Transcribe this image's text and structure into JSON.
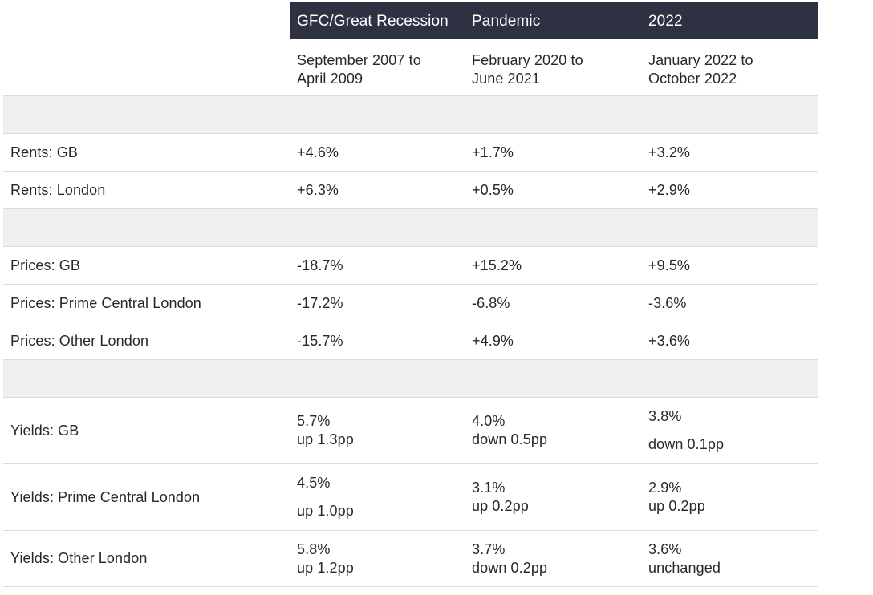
{
  "header": {
    "columns": [
      "GFC/Great Recession",
      "Pandemic",
      "2022"
    ]
  },
  "periods": [
    [
      "September 2007 to",
      "April 2009"
    ],
    [
      "February 2020 to",
      "June 2021"
    ],
    [
      "January 2022 to",
      "October 2022"
    ]
  ],
  "rents": {
    "gb": {
      "label": "Rents: GB",
      "values": [
        "+4.6%",
        "+1.7%",
        "+3.2%"
      ]
    },
    "london": {
      "label": "Rents: London",
      "values": [
        "+6.3%",
        "+0.5%",
        "+2.9%"
      ]
    }
  },
  "prices": {
    "gb": {
      "label": "Prices: GB",
      "values": [
        "-18.7%",
        "+15.2%",
        "+9.5%"
      ]
    },
    "pcl": {
      "label": "Prices: Prime Central London",
      "values": [
        "-17.2%",
        "-6.8%",
        "-3.6%"
      ]
    },
    "other": {
      "label": "Prices: Other London",
      "values": [
        "-15.7%",
        "+4.9%",
        "+3.6%"
      ]
    }
  },
  "yields": {
    "gb": {
      "label": "Yields: GB",
      "values": [
        [
          "5.7%",
          "up 1.3pp"
        ],
        [
          "4.0%",
          "down 0.5pp"
        ],
        [
          "3.8%",
          "down 0.1pp"
        ]
      ]
    },
    "pcl": {
      "label": "Yields: Prime Central London",
      "values": [
        [
          "4.5%",
          "up 1.0pp"
        ],
        [
          "3.1%",
          "up 0.2pp"
        ],
        [
          "2.9%",
          "up 0.2pp"
        ]
      ]
    },
    "other": {
      "label": "Yields: Other London",
      "values": [
        [
          "5.8%",
          "up 1.2pp"
        ],
        [
          "3.7%",
          "down 0.2pp"
        ],
        [
          "3.6%",
          "unchanged"
        ]
      ]
    }
  }
}
